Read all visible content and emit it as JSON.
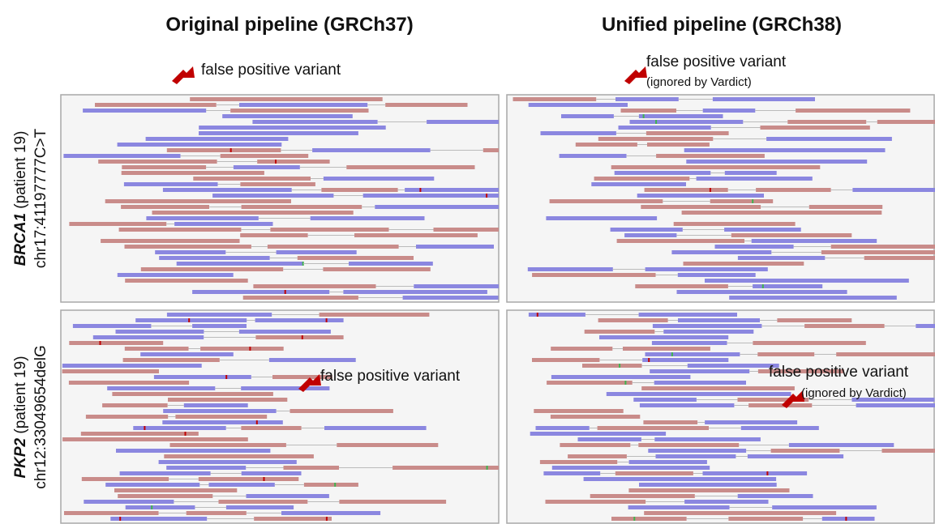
{
  "columns": [
    {
      "title": "Original pipeline (GRCh37)"
    },
    {
      "title": "Unified pipeline (GRCh38)"
    }
  ],
  "rows": [
    {
      "gene": "BRCA1",
      "patient": "(patient 19)",
      "locus": "chr17:41197777C>T"
    },
    {
      "gene": "PKP2",
      "patient": "(patient 19)",
      "locus": "chr12:33049654delG"
    }
  ],
  "panels": [
    {
      "annotation": "false positive variant"
    },
    {
      "annotation": "false positive variant",
      "note": "(ignored by Vardict)"
    },
    {
      "annotation": "false positive variant"
    },
    {
      "annotation": "false positive variant",
      "note": "(ignored by Vardict)"
    }
  ]
}
